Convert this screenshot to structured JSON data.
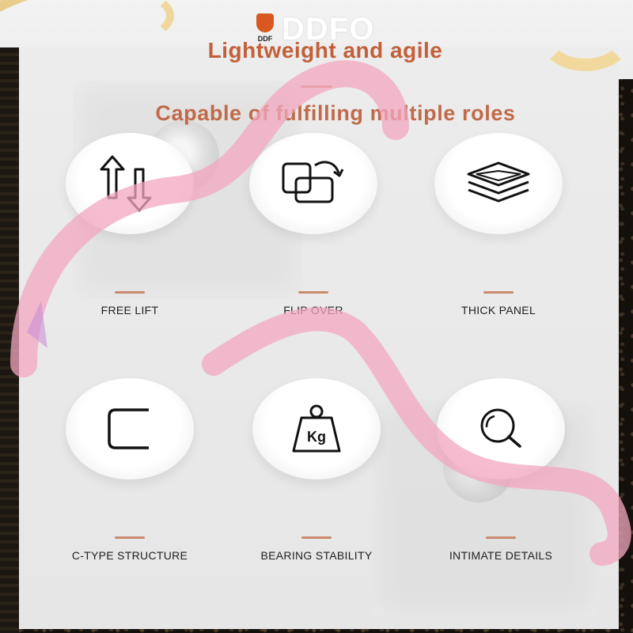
{
  "brand": {
    "name": "DDFO",
    "badge_text": "DDF"
  },
  "header": {
    "title": "Lightweight and agile",
    "subtitle": "Capable of fulfilling multiple roles"
  },
  "features": [
    {
      "label": "FREE LIFT",
      "icon": "up-down-arrows-icon"
    },
    {
      "label": "FLIP OVER",
      "icon": "flip-squares-icon"
    },
    {
      "label": "THICK PANEL",
      "icon": "layers-icon"
    },
    {
      "label": "C-TYPE STRUCTURE",
      "icon": "c-bracket-icon"
    },
    {
      "label": "BEARING STABILITY",
      "icon": "weight-kg-icon",
      "icon_text": "Kg"
    },
    {
      "label": "INTIMATE DETAILS",
      "icon": "magnifier-icon"
    }
  ],
  "colors": {
    "title": "#c2603a",
    "accent_divider": "#c98a6d",
    "ribbon": "#f2a7bf",
    "gold": "#e8c97f"
  }
}
